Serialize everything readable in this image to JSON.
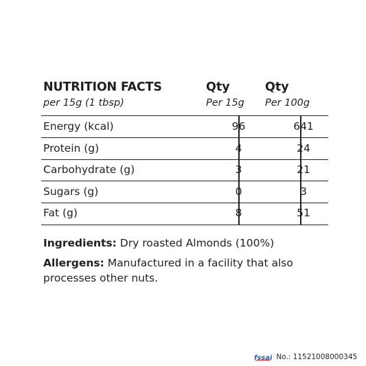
{
  "header": {
    "title": "NUTRITION FACTS",
    "serving": "per 15g (1 tbsp)",
    "col1_title": "Qty",
    "col1_sub": "Per 15g",
    "col2_title": "Qty",
    "col2_sub": "Per 100g"
  },
  "rows": [
    {
      "name": "Energy (kcal)",
      "per15": "96",
      "per100": "641"
    },
    {
      "name": "Protein (g)",
      "per15": "4",
      "per100": "24"
    },
    {
      "name": "Carbohydrate (g)",
      "per15": "3",
      "per100": "21"
    },
    {
      "name": "Sugars (g)",
      "per15": "0",
      "per100": "3"
    },
    {
      "name": "Fat (g)",
      "per15": "8",
      "per100": "51"
    }
  ],
  "ingredients": {
    "label": "Ingredients:",
    "text": "Dry roasted Almonds (100%)"
  },
  "allergens": {
    "label": "Allergens:",
    "text": "Manufactured in a facility that also processes other nuts."
  },
  "license": {
    "logo_text": "fssai",
    "number_text": "No.: 11521008000345"
  },
  "colors": {
    "ink": "#231f20",
    "fssai_blue": "#2a5ea8",
    "fssai_red": "#d71920"
  }
}
